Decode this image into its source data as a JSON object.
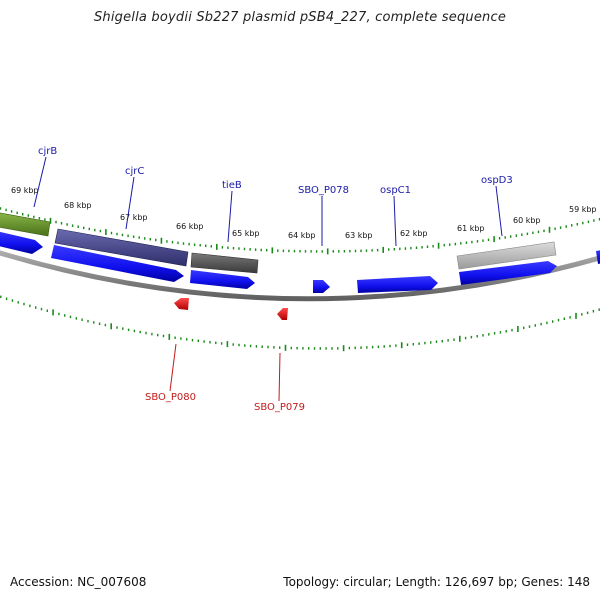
{
  "title": "Shigella boydii Sb227 plasmid pSB4_227, complete sequence",
  "footer": {
    "accession": "Accession: NC_007608",
    "summary": "Topology: circular; Length: 126,697 bp; Genes: 148"
  },
  "map": {
    "kbp_labels": [
      "69 kbp",
      "68 kbp",
      "67 kbp",
      "66 kbp",
      "65 kbp",
      "64 kbp",
      "63 kbp",
      "62 kbp",
      "61 kbp",
      "60 kbp",
      "59 kbp"
    ],
    "gene_labels_forward": [
      "cjrB",
      "cjrC",
      "tieB",
      "SBO_P078",
      "ospC1",
      "ospD3"
    ],
    "gene_labels_reverse": [
      "SBO_P080",
      "SBO_P079"
    ],
    "colors": {
      "forward_gene": "#1010ee",
      "reverse_gene": "#ee1010",
      "backbone": "#808080",
      "tick": "#1a8a1a",
      "label_forward": "#1a1aa8",
      "label_reverse": "#c41a1a",
      "cog_green": "#6b9a2a",
      "cog_purple": "#4a4a8a",
      "cog_darkgray": "#5a5a5a",
      "cog_lightgray": "#b8b8b8"
    }
  }
}
